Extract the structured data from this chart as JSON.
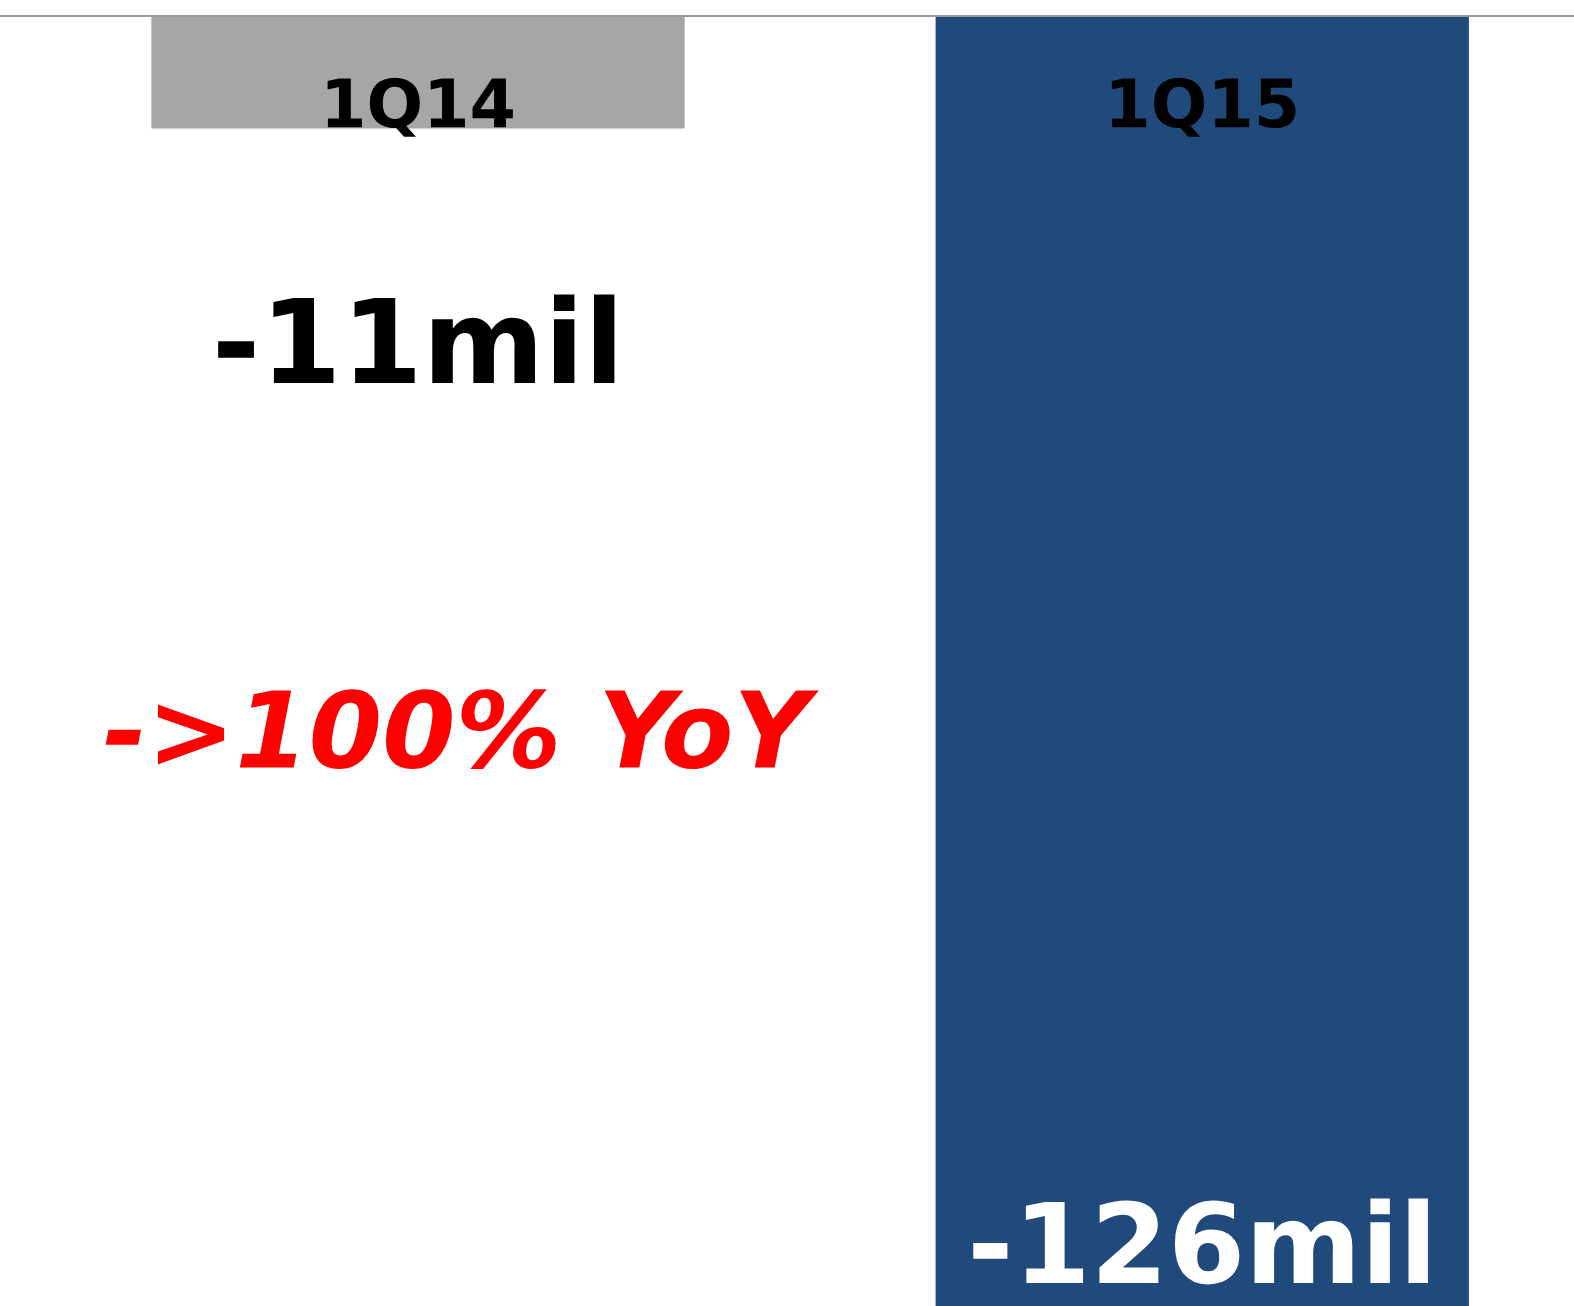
{
  "chart_data": {
    "type": "bar",
    "categories": [
      "1Q14",
      "1Q15"
    ],
    "values": [
      -11,
      -126
    ],
    "colors": [
      "#a6a6a6",
      "#214a7c"
    ],
    "value_labels": [
      "-11mil",
      "-126mil"
    ],
    "ylim": [
      -126,
      0
    ],
    "tick_labels": "x",
    "annotations": [
      "->100% YoY"
    ]
  }
}
